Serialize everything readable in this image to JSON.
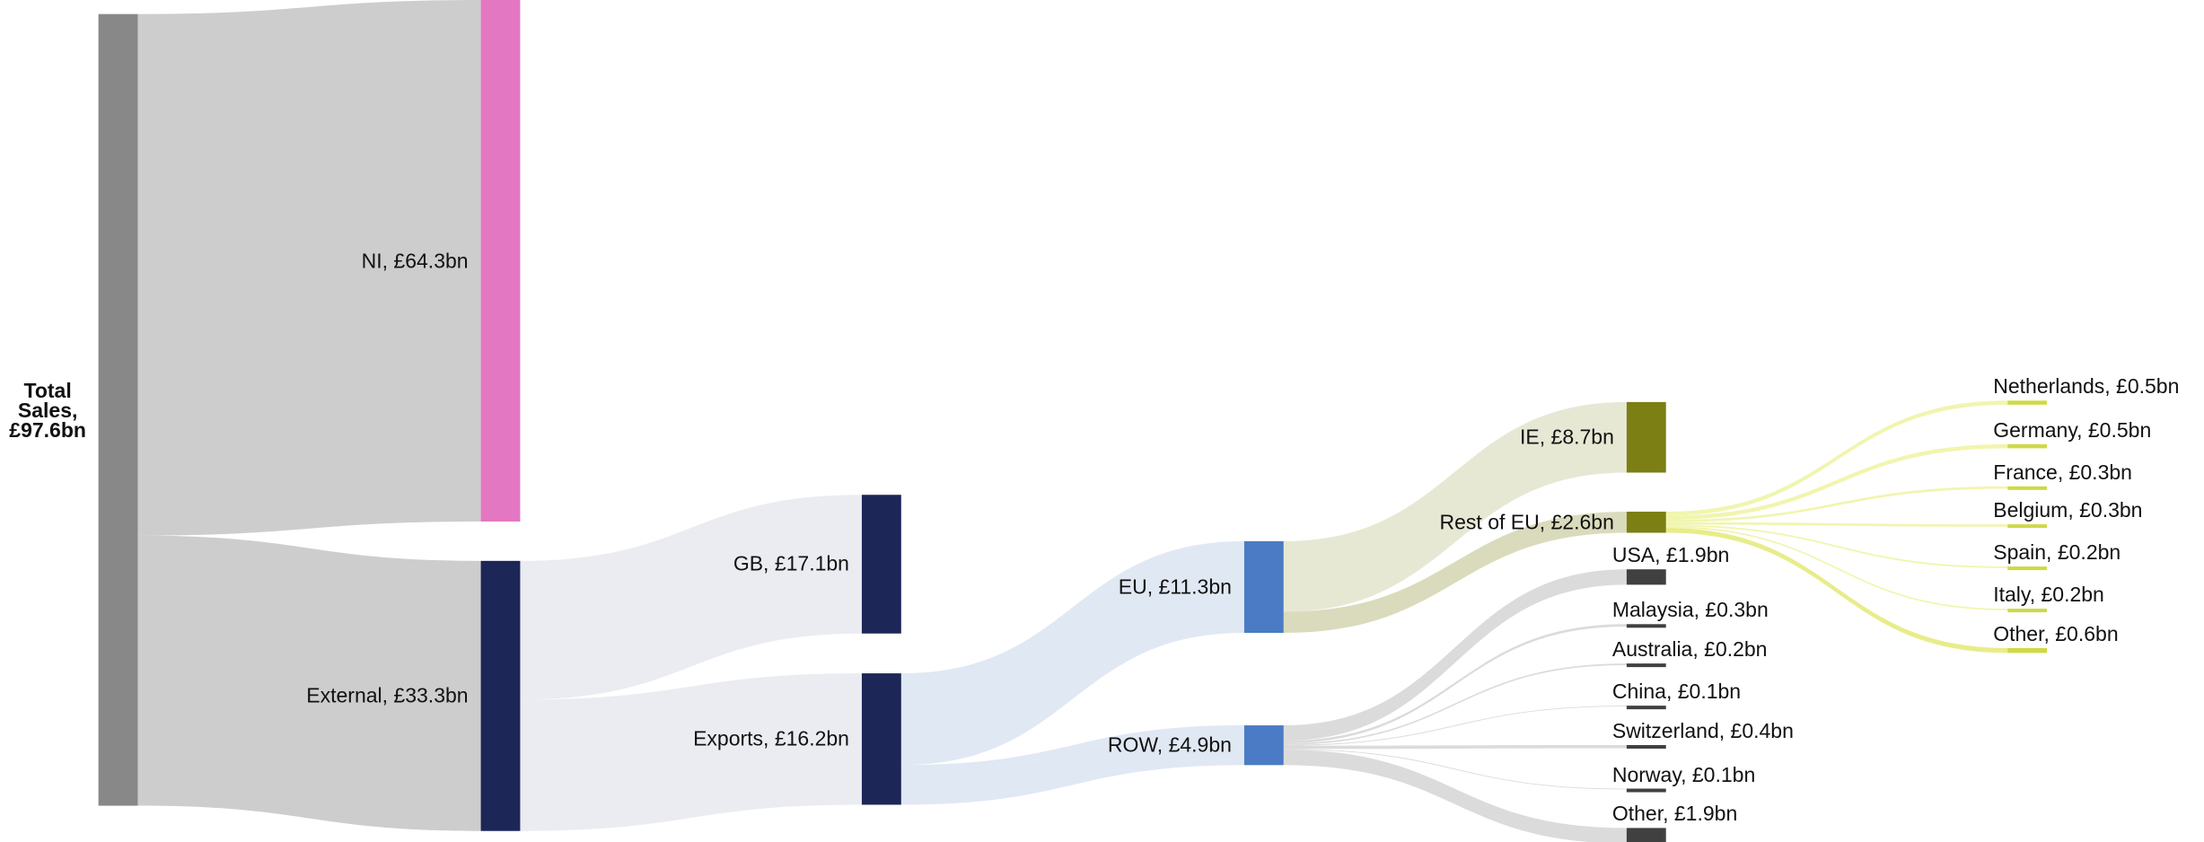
{
  "chart_data": {
    "type": "sankey",
    "nodes": [
      {
        "label": "Total Sales, £97.6bn",
        "value": 97.6,
        "color": "#888888"
      },
      {
        "label": "NI, £64.3bn",
        "value": 64.3,
        "color": "#e377c2"
      },
      {
        "label": "External, £33.3bn",
        "value": 33.3,
        "color": "#1c2657"
      },
      {
        "label": "GB, £17.1bn",
        "value": 17.1,
        "color": "#1c2657"
      },
      {
        "label": "Exports, £16.2bn",
        "value": 16.2,
        "color": "#1c2657"
      },
      {
        "label": "EU, £11.3bn",
        "value": 11.3,
        "color": "#4a7bc4"
      },
      {
        "label": "ROW, £4.9bn",
        "value": 4.9,
        "color": "#4a7bc4"
      },
      {
        "label": "IE, £8.7bn",
        "value": 8.7,
        "color": "#7b7f14"
      },
      {
        "label": "Rest of EU, £2.6bn",
        "value": 2.6,
        "color": "#7b7f14"
      },
      {
        "label": "USA, £1.9bn",
        "value": 1.9,
        "color": "#404040"
      },
      {
        "label": "Malaysia, £0.3bn",
        "value": 0.3,
        "color": "#404040"
      },
      {
        "label": "Australia, £0.2bn",
        "value": 0.2,
        "color": "#404040"
      },
      {
        "label": "China, £0.1bn",
        "value": 0.1,
        "color": "#404040"
      },
      {
        "label": "Switzerland, £0.4bn",
        "value": 0.4,
        "color": "#404040"
      },
      {
        "label": "Norway, £0.1bn",
        "value": 0.1,
        "color": "#404040"
      },
      {
        "label": "Other, £1.9bn",
        "value": 1.9,
        "color": "#404040"
      },
      {
        "label": "Netherlands, £0.5bn",
        "value": 0.5,
        "color": "#cfd944"
      },
      {
        "label": "Germany, £0.5bn",
        "value": 0.5,
        "color": "#cfd944"
      },
      {
        "label": "France, £0.3bn",
        "value": 0.3,
        "color": "#cfd944"
      },
      {
        "label": "Belgium, £0.3bn",
        "value": 0.3,
        "color": "#cfd944"
      },
      {
        "label": "Spain, £0.2bn",
        "value": 0.2,
        "color": "#cfd944"
      },
      {
        "label": "Italy, £0.2bn",
        "value": 0.2,
        "color": "#cfd944"
      },
      {
        "label": "Other, £0.6bn",
        "value": 0.6,
        "color": "#cfd944"
      }
    ],
    "links": [
      {
        "source": 0,
        "target": 1,
        "value": 64.3,
        "color": "#c4c4c4"
      },
      {
        "source": 0,
        "target": 2,
        "value": 33.3,
        "color": "#c4c4c4"
      },
      {
        "source": 2,
        "target": 3,
        "value": 17.1,
        "color": "#e8e9ef"
      },
      {
        "source": 2,
        "target": 4,
        "value": 16.2,
        "color": "#e8e9ef"
      },
      {
        "source": 4,
        "target": 5,
        "value": 11.3,
        "color": "#dae4f1"
      },
      {
        "source": 4,
        "target": 6,
        "value": 4.9,
        "color": "#dae4f1"
      },
      {
        "source": 5,
        "target": 7,
        "value": 8.7,
        "color": "#e3e4cc"
      },
      {
        "source": 5,
        "target": 8,
        "value": 2.6,
        "color": "#d3d5b0"
      },
      {
        "source": 6,
        "target": 9,
        "value": 1.9,
        "color": "#d5d5d5"
      },
      {
        "source": 6,
        "target": 10,
        "value": 0.3,
        "color": "#d5d5d5"
      },
      {
        "source": 6,
        "target": 11,
        "value": 0.2,
        "color": "#d5d5d5"
      },
      {
        "source": 6,
        "target": 12,
        "value": 0.1,
        "color": "#d5d5d5"
      },
      {
        "source": 6,
        "target": 13,
        "value": 0.4,
        "color": "#d5d5d5"
      },
      {
        "source": 6,
        "target": 14,
        "value": 0.1,
        "color": "#d5d5d5"
      },
      {
        "source": 6,
        "target": 15,
        "value": 1.9,
        "color": "#d5d5d5"
      },
      {
        "source": 8,
        "target": 16,
        "value": 0.5,
        "color": "#eef3a0"
      },
      {
        "source": 8,
        "target": 17,
        "value": 0.5,
        "color": "#eef3a0"
      },
      {
        "source": 8,
        "target": 18,
        "value": 0.3,
        "color": "#eef3a0"
      },
      {
        "source": 8,
        "target": 19,
        "value": 0.3,
        "color": "#eef3a0"
      },
      {
        "source": 8,
        "target": 20,
        "value": 0.2,
        "color": "#eef3a0"
      },
      {
        "source": 8,
        "target": 21,
        "value": 0.2,
        "color": "#eef3a0"
      },
      {
        "source": 8,
        "target": 22,
        "value": 0.6,
        "color": "#e3ea74"
      }
    ]
  }
}
